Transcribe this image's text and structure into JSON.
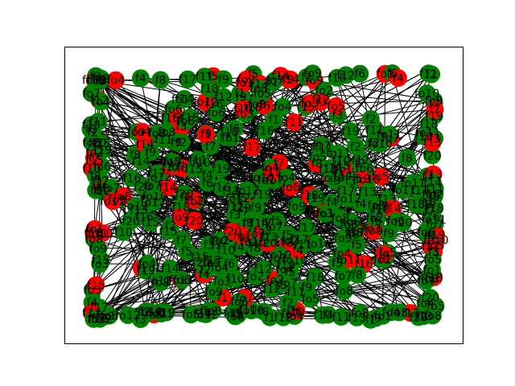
{
  "colors": {
    "background": "#ffffff",
    "frame": "#000000",
    "edge": "#000000",
    "node_primary": "#008000",
    "node_secondary": "#ff0000",
    "label": "#000000"
  },
  "graph": {
    "visible_labels": [
      "f3",
      "fo2",
      "f8",
      "fo3",
      "f2",
      "f7",
      "f1",
      "fo1",
      "fo5",
      "f6",
      "f5",
      "f4",
      "f11",
      "f12",
      "f10",
      "f13",
      "f15",
      "fo9",
      "f9",
      "fo4",
      "f16",
      "fo6",
      "fo7",
      "f14",
      "fo8",
      "f17",
      "fo10",
      "f18",
      "fo11",
      "f19",
      "fo12",
      "f20"
    ]
  }
}
